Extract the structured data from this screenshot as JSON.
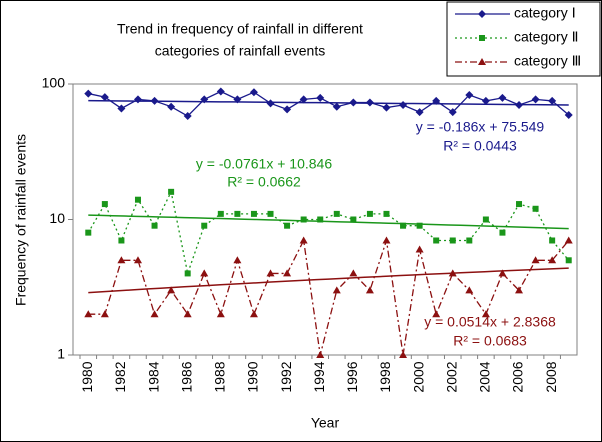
{
  "chart_data": {
    "type": "line",
    "title": [
      "Trend in frequency of rainfall in different",
      "categories of rainfall events"
    ],
    "x_label": "Year",
    "y_label": "Frequency of  rainfall  events",
    "categories": [
      "1980",
      null,
      "1982",
      null,
      "1984",
      null,
      "1986",
      null,
      "1988",
      null,
      "1990",
      null,
      "1992",
      null,
      "1994",
      null,
      "1996",
      null,
      "1998",
      null,
      "2000",
      null,
      "2002",
      null,
      "2004",
      null,
      "2006",
      null,
      "2008",
      null
    ],
    "log_scale": true,
    "ylim": [
      1,
      100
    ],
    "yticks": [
      1,
      10,
      100
    ],
    "legend": "top-right",
    "series": [
      {
        "name": "category Ⅰ",
        "color": "#1a1a8c",
        "marker": "diamond",
        "dash": "solid",
        "values": [
          85,
          80,
          66,
          77,
          75,
          68,
          58,
          77,
          88,
          77,
          87,
          72,
          65,
          77,
          79,
          68,
          73,
          73,
          67,
          70,
          62,
          75,
          62,
          83,
          75,
          79,
          70,
          77,
          75,
          59
        ],
        "trend": [
          75.363,
          69.969
        ],
        "equation": "y = -0.186x + 75.549",
        "r_squared": "R² = 0.0443"
      },
      {
        "name": "category Ⅱ",
        "color": "#1a961a",
        "marker": "square",
        "dash": "dotted",
        "values": [
          8,
          13,
          7,
          14,
          9,
          16,
          4,
          9,
          11,
          11,
          11,
          11,
          9,
          10,
          10,
          11,
          10,
          11,
          11,
          9,
          9,
          7,
          7,
          7,
          10,
          8,
          13,
          12,
          7,
          5
        ],
        "trend": [
          10.77,
          8.563
        ],
        "equation": "y = -0.0761x + 10.846",
        "r_squared": "R² = 0.0662"
      },
      {
        "name": "category Ⅲ",
        "color": "#8c1010",
        "marker": "triangle",
        "dash": "dashdot",
        "values": [
          2,
          2,
          5,
          5,
          2,
          3,
          2,
          4,
          2,
          5,
          2,
          4,
          4,
          7,
          1,
          3,
          4,
          3,
          7,
          1,
          6,
          2,
          4,
          3,
          2,
          4,
          3,
          5,
          5,
          7
        ],
        "trend": [
          2.888,
          4.379
        ],
        "equation": "y = 0.0514x + 2.8368",
        "r_squared": "R² = 0.0683"
      }
    ]
  }
}
